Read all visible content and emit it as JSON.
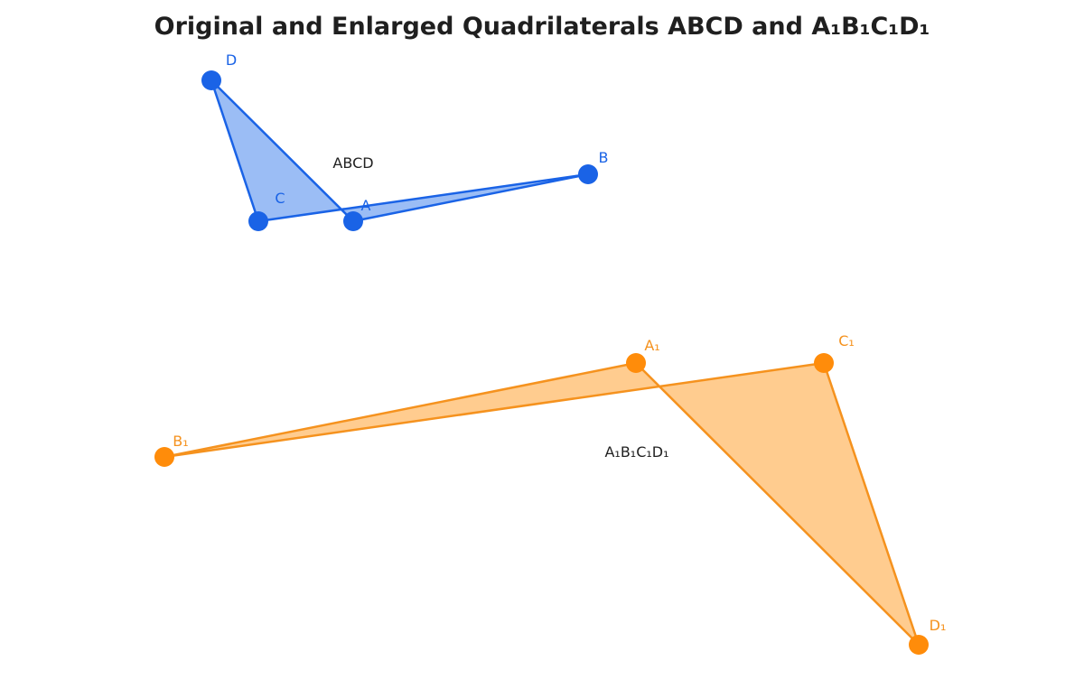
{
  "title": "Original and Enlarged Quadrilaterals ABCD and A₁B₁C₁D₁",
  "colors": {
    "original_stroke": "#1a63e6",
    "original_fill": "#9bbdf5",
    "original_point": "#1a63e6",
    "enlarged_stroke": "#f5921e",
    "enlarged_fill": "#ffcc8f",
    "enlarged_point": "#ff8c0a",
    "label_text": "#222222"
  },
  "shapes": [
    {
      "id": "original",
      "label": "ABCD",
      "vertices": [
        {
          "name": "A"
        },
        {
          "name": "B"
        },
        {
          "name": "C"
        },
        {
          "name": "D"
        }
      ]
    },
    {
      "id": "enlarged",
      "label": "A₁B₁C₁D₁",
      "vertices": [
        {
          "name": "A₁"
        },
        {
          "name": "B₁"
        },
        {
          "name": "C₁"
        },
        {
          "name": "D₁"
        }
      ]
    }
  ]
}
